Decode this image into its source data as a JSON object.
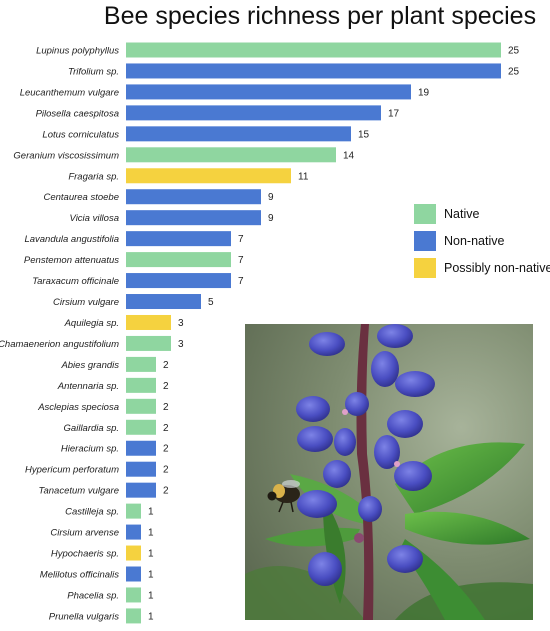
{
  "chart_data": {
    "type": "bar",
    "orientation": "horizontal",
    "title": "Bee species richness per plant species",
    "xlabel": "",
    "ylabel": "",
    "xlim": [
      0,
      25
    ],
    "grid": false,
    "legend_position": "right-middle",
    "legend": [
      {
        "key": "native",
        "label": "Native",
        "color": "#8fd6a0"
      },
      {
        "key": "non_native",
        "label": "Non-native",
        "color": "#4a79d2"
      },
      {
        "key": "possibly_non_native",
        "label": "Possibly non-native",
        "color": "#f5d23f"
      }
    ],
    "categories": [
      "Lupinus polyphyllus",
      "Trifolium sp.",
      "Leucanthemum vulgare",
      "Pilosella caespitosa",
      "Lotus corniculatus",
      "Geranium viscosissimum",
      "Fragaria sp.",
      "Centaurea stoebe",
      "Vicia villosa",
      "Lavandula angustifolia",
      "Penstemon attenuatus",
      "Taraxacum officinale",
      "Cirsium vulgare",
      "Aquilegia sp.",
      "Chamaenerion angustifolium",
      "Abies grandis",
      "Antennaria sp.",
      "Asclepias speciosa",
      "Gaillardia sp.",
      "Hieracium sp.",
      "Hypericum perforatum",
      "Tanacetum vulgare",
      "Castilleja sp.",
      "Cirsium arvense",
      "Hypochaeris sp.",
      "Melilotus officinalis",
      "Phacelia sp.",
      "Prunella vulgaris"
    ],
    "values": [
      25,
      25,
      19,
      17,
      15,
      14,
      11,
      9,
      9,
      7,
      7,
      7,
      5,
      3,
      3,
      2,
      2,
      2,
      2,
      2,
      2,
      2,
      1,
      1,
      1,
      1,
      1,
      1
    ],
    "status": [
      "native",
      "non_native",
      "non_native",
      "non_native",
      "non_native",
      "native",
      "possibly_non_native",
      "non_native",
      "non_native",
      "non_native",
      "native",
      "non_native",
      "non_native",
      "possibly_non_native",
      "native",
      "native",
      "native",
      "native",
      "native",
      "non_native",
      "non_native",
      "non_native",
      "native",
      "non_native",
      "possibly_non_native",
      "non_native",
      "native",
      "native"
    ]
  },
  "photo": {
    "subject": "bee-on-lupine-flower",
    "colors": {
      "background": "#7a8a6c",
      "leaf": "#4f9a3a",
      "flower": "#4b4fc0",
      "stem": "#6a3040"
    }
  }
}
